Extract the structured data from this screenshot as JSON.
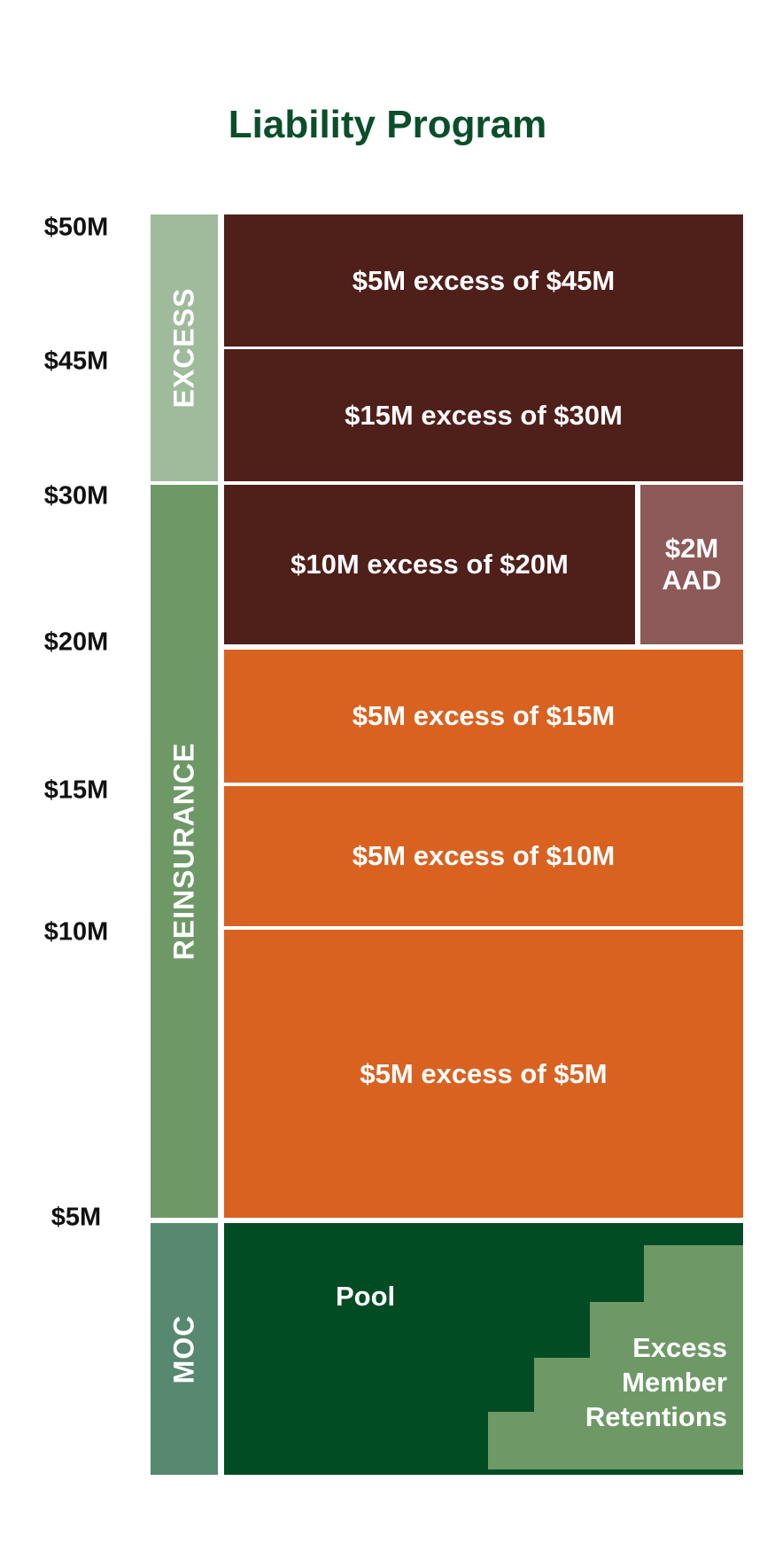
{
  "title": "Liability Program",
  "colors": {
    "title": "#0b4f2a",
    "excess_layer": "#4f1f1a",
    "aad": "#8e5959",
    "reinsurance_layer": "#d96221",
    "pool": "#024c24",
    "member_retentions": "#6e9967",
    "side_excess": "#9fbb9c",
    "side_reinsurance": "#6e9967",
    "side_moc": "#578870"
  },
  "axis_ticks": [
    "$50M",
    "$45M",
    "$30M",
    "$20M",
    "$15M",
    "$10M",
    "$5M"
  ],
  "sections": {
    "excess": "EXCESS",
    "reinsurance": "REINSURANCE",
    "moc": "MOC"
  },
  "layers": {
    "l1": "$5M excess of $45M",
    "l2": "$15M excess of $30M",
    "l3": "$10M excess of $20M",
    "aad": [
      "$2M",
      "AAD"
    ],
    "l4": "$5M excess of $15M",
    "l5": "$5M excess of $10M",
    "l6": "$5M excess of $5M"
  },
  "moc": {
    "pool": "Pool",
    "retentions": [
      "Excess",
      "Member",
      "Retentions"
    ]
  }
}
